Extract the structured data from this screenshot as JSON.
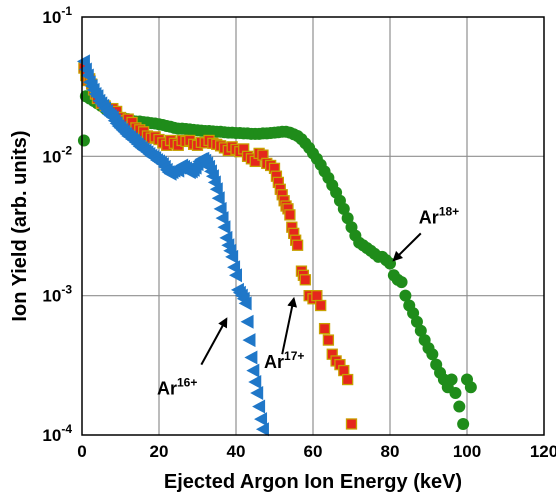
{
  "chart_data": {
    "type": "scatter",
    "xlabel": "Ejected Argon Ion Energy (keV)",
    "ylabel": "Ion Yield (arb. units)",
    "xlim": [
      0,
      120
    ],
    "ylim": [
      0.0001,
      0.1
    ],
    "yscale": "log",
    "grid": true,
    "xticks": [
      "0",
      "20",
      "40",
      "60",
      "80",
      "100",
      "120"
    ],
    "yticks": [
      {
        "base": "10",
        "exp": "-4",
        "value": 0.0001
      },
      {
        "base": "10",
        "exp": "-3",
        "value": 0.001
      },
      {
        "base": "10",
        "exp": "-2",
        "value": 0.01
      },
      {
        "base": "10",
        "exp": "-1",
        "value": 0.1
      }
    ],
    "series": [
      {
        "marker": "triangle-left",
        "color": "#1f77c8",
        "points": [
          [
            0.5,
            0.048
          ],
          [
            1,
            0.042
          ],
          [
            1.5,
            0.038
          ],
          [
            2,
            0.034
          ],
          [
            2.5,
            0.032
          ],
          [
            3,
            0.03
          ],
          [
            3.5,
            0.028
          ],
          [
            4,
            0.027
          ],
          [
            4.5,
            0.025
          ],
          [
            5,
            0.024
          ],
          [
            5.5,
            0.023
          ],
          [
            6,
            0.022
          ],
          [
            6.5,
            0.021
          ],
          [
            7,
            0.02
          ],
          [
            7.5,
            0.0195
          ],
          [
            8,
            0.019
          ],
          [
            8.5,
            0.018
          ],
          [
            9,
            0.0172
          ],
          [
            9.5,
            0.0165
          ],
          [
            10,
            0.016
          ],
          [
            10.5,
            0.0155
          ],
          [
            11,
            0.015
          ],
          [
            11.5,
            0.0145
          ],
          [
            12,
            0.014
          ],
          [
            12.5,
            0.0137
          ],
          [
            13,
            0.0133
          ],
          [
            13.5,
            0.013
          ],
          [
            14,
            0.0126
          ],
          [
            14.5,
            0.0122
          ],
          [
            15,
            0.0118
          ],
          [
            15.5,
            0.0115
          ],
          [
            16,
            0.0112
          ],
          [
            16.5,
            0.011
          ],
          [
            17,
            0.0107
          ],
          [
            17.5,
            0.0104
          ],
          [
            18,
            0.0101
          ],
          [
            18.5,
            0.0099
          ],
          [
            19,
            0.0097
          ],
          [
            19.5,
            0.0094
          ],
          [
            20,
            0.0092
          ],
          [
            20.5,
            0.009
          ],
          [
            21,
            0.0088
          ],
          [
            21.5,
            0.0084
          ],
          [
            22,
            0.008
          ],
          [
            22.5,
            0.0077
          ],
          [
            23,
            0.0075
          ],
          [
            23.5,
            0.0077
          ],
          [
            24,
            0.0079
          ],
          [
            24.5,
            0.0081
          ],
          [
            25,
            0.0079
          ],
          [
            25.5,
            0.0083
          ],
          [
            26,
            0.0086
          ],
          [
            26.5,
            0.0084
          ],
          [
            27,
            0.0082
          ],
          [
            27.5,
            0.0079
          ],
          [
            28,
            0.0077
          ],
          [
            28.5,
            0.0078
          ],
          [
            29,
            0.008
          ],
          [
            29.5,
            0.0083
          ],
          [
            30,
            0.0088
          ],
          [
            30.5,
            0.0092
          ],
          [
            31,
            0.0095
          ],
          [
            31.5,
            0.0096
          ],
          [
            32,
            0.0093
          ],
          [
            32.5,
            0.0089
          ],
          [
            33,
            0.0084
          ],
          [
            33.5,
            0.0078
          ],
          [
            34,
            0.0072
          ],
          [
            34.5,
            0.0065
          ],
          [
            35,
            0.0058
          ],
          [
            35.5,
            0.005
          ],
          [
            36,
            0.0042
          ],
          [
            36.5,
            0.0036
          ],
          [
            37,
            0.0031
          ],
          [
            37.5,
            0.0026
          ],
          [
            38,
            0.0023
          ],
          [
            38.5,
            0.0021
          ],
          [
            39,
            0.0019
          ],
          [
            39.5,
            0.0016
          ],
          [
            40,
            0.0014
          ],
          [
            40.5,
            0.0011
          ],
          [
            41,
            0.00105
          ],
          [
            41.5,
            0.001
          ],
          [
            42,
            0.00095
          ],
          [
            42.5,
            0.00088
          ],
          [
            43,
            0.00065
          ],
          [
            43.5,
            0.00048
          ],
          [
            44,
            0.00036
          ],
          [
            44.5,
            0.00029
          ],
          [
            45,
            0.00024
          ],
          [
            45.5,
            0.0002
          ],
          [
            46,
            0.00016
          ],
          [
            46.5,
            0.00013
          ],
          [
            47,
            0.00011
          ]
        ]
      },
      {
        "marker": "square",
        "color": "#e5261c",
        "edgecolor": "#c8a000",
        "points": [
          [
            0.5,
            0.043
          ],
          [
            1,
            0.038
          ],
          [
            1.5,
            0.035
          ],
          [
            2,
            0.036
          ],
          [
            2.5,
            0.033
          ],
          [
            3,
            0.03
          ],
          [
            3.5,
            0.028
          ],
          [
            4,
            0.026
          ],
          [
            5,
            0.024
          ],
          [
            6,
            0.023
          ],
          [
            7,
            0.022
          ],
          [
            8,
            0.022
          ],
          [
            9,
            0.021
          ],
          [
            10,
            0.019
          ],
          [
            11,
            0.018
          ],
          [
            12,
            0.0185
          ],
          [
            13,
            0.0175
          ],
          [
            14,
            0.016
          ],
          [
            15,
            0.0155
          ],
          [
            16,
            0.015
          ],
          [
            17,
            0.014
          ],
          [
            18,
            0.0135
          ],
          [
            19,
            0.0138
          ],
          [
            20,
            0.0132
          ],
          [
            21,
            0.0125
          ],
          [
            22,
            0.012
          ],
          [
            23,
            0.013
          ],
          [
            24,
            0.0124
          ],
          [
            25,
            0.012
          ],
          [
            26,
            0.013
          ],
          [
            27,
            0.0128
          ],
          [
            28,
            0.013
          ],
          [
            29,
            0.0122
          ],
          [
            30,
            0.012
          ],
          [
            31,
            0.0126
          ],
          [
            32,
            0.0125
          ],
          [
            33,
            0.013
          ],
          [
            34,
            0.0124
          ],
          [
            35,
            0.0122
          ],
          [
            36,
            0.0119
          ],
          [
            37,
            0.0115
          ],
          [
            38,
            0.011
          ],
          [
            39,
            0.0117
          ],
          [
            40,
            0.0112
          ],
          [
            41,
            0.0108
          ],
          [
            42,
            0.0113
          ],
          [
            43,
            0.01
          ],
          [
            44,
            0.0096
          ],
          [
            45,
            0.0092
          ],
          [
            46,
            0.0105
          ],
          [
            47,
            0.0102
          ],
          [
            48,
            0.0089
          ],
          [
            49,
            0.0086
          ],
          [
            50,
            0.0082
          ],
          [
            50.5,
            0.0072
          ],
          [
            51,
            0.0065
          ],
          [
            51.5,
            0.0058
          ],
          [
            52,
            0.0053
          ],
          [
            52.5,
            0.0048
          ],
          [
            53,
            0.0044
          ],
          [
            53.5,
            0.0042
          ],
          [
            54,
            0.0038
          ],
          [
            54.5,
            0.0031
          ],
          [
            55,
            0.0028
          ],
          [
            55.5,
            0.0025
          ],
          [
            56,
            0.0023
          ],
          [
            57,
            0.0015
          ],
          [
            57.5,
            0.0014
          ],
          [
            58,
            0.0013
          ],
          [
            59,
            0.001
          ],
          [
            60,
            0.00095
          ],
          [
            61,
            0.001
          ],
          [
            62,
            0.00085
          ],
          [
            63,
            0.00058
          ],
          [
            64,
            0.00048
          ],
          [
            65,
            0.00038
          ],
          [
            66,
            0.00034
          ],
          [
            67,
            0.00032
          ],
          [
            68,
            0.00029
          ],
          [
            69,
            0.00025
          ],
          [
            70,
            0.00012
          ]
        ]
      },
      {
        "marker": "circle",
        "color": "#1f8c1a",
        "points": [
          [
            0.5,
            0.013
          ],
          [
            1,
            0.027
          ],
          [
            2,
            0.026
          ],
          [
            3,
            0.025
          ],
          [
            4,
            0.024
          ],
          [
            5,
            0.023
          ],
          [
            6,
            0.022
          ],
          [
            7,
            0.021
          ],
          [
            8,
            0.02
          ],
          [
            9,
            0.0195
          ],
          [
            10,
            0.019
          ],
          [
            11,
            0.0187
          ],
          [
            12,
            0.0185
          ],
          [
            13,
            0.018
          ],
          [
            14,
            0.0178
          ],
          [
            15,
            0.0178
          ],
          [
            16,
            0.0176
          ],
          [
            17,
            0.0175
          ],
          [
            18,
            0.0173
          ],
          [
            19,
            0.0172
          ],
          [
            20,
            0.017
          ],
          [
            21,
            0.0168
          ],
          [
            22,
            0.0165
          ],
          [
            23,
            0.0163
          ],
          [
            24,
            0.016
          ],
          [
            25,
            0.0158
          ],
          [
            26,
            0.0158
          ],
          [
            27,
            0.0157
          ],
          [
            28,
            0.0156
          ],
          [
            29,
            0.0155
          ],
          [
            30,
            0.0154
          ],
          [
            31,
            0.0153
          ],
          [
            32,
            0.0152
          ],
          [
            33,
            0.0152
          ],
          [
            34,
            0.0151
          ],
          [
            35,
            0.015
          ],
          [
            36,
            0.015
          ],
          [
            37,
            0.0149
          ],
          [
            38,
            0.0148
          ],
          [
            39,
            0.0148
          ],
          [
            40,
            0.0147
          ],
          [
            41,
            0.0147
          ],
          [
            42,
            0.0146
          ],
          [
            43,
            0.0146
          ],
          [
            44,
            0.0145
          ],
          [
            45,
            0.0145
          ],
          [
            46,
            0.0145
          ],
          [
            47,
            0.0146
          ],
          [
            48,
            0.0146
          ],
          [
            49,
            0.0147
          ],
          [
            50,
            0.0148
          ],
          [
            51,
            0.0149
          ],
          [
            52,
            0.015
          ],
          [
            53,
            0.015
          ],
          [
            54,
            0.0148
          ],
          [
            55,
            0.0144
          ],
          [
            56,
            0.014
          ],
          [
            57,
            0.0133
          ],
          [
            58,
            0.0124
          ],
          [
            59,
            0.0115
          ],
          [
            60,
            0.0105
          ],
          [
            61,
            0.0096
          ],
          [
            62,
            0.0087
          ],
          [
            63,
            0.0078
          ],
          [
            64,
            0.007
          ],
          [
            65,
            0.0062
          ],
          [
            66,
            0.0055
          ],
          [
            67,
            0.0048
          ],
          [
            68,
            0.0042
          ],
          [
            69,
            0.0036
          ],
          [
            70,
            0.0031
          ],
          [
            71,
            0.0027
          ],
          [
            72,
            0.0024
          ],
          [
            73,
            0.0023
          ],
          [
            74,
            0.0022
          ],
          [
            75,
            0.0021
          ],
          [
            76,
            0.002
          ],
          [
            77,
            0.0019
          ],
          [
            78,
            0.0019
          ],
          [
            79,
            0.0018
          ],
          [
            80,
            0.0017
          ],
          [
            81,
            0.0014
          ],
          [
            82,
            0.0013
          ],
          [
            83,
            0.00125
          ],
          [
            84,
            0.001
          ],
          [
            85,
            0.00085
          ],
          [
            86,
            0.00075
          ],
          [
            87,
            0.00065
          ],
          [
            88,
            0.00056
          ],
          [
            89,
            0.00048
          ],
          [
            90,
            0.00042
          ],
          [
            91,
            0.00038
          ],
          [
            92,
            0.00032
          ],
          [
            93,
            0.00028
          ],
          [
            94,
            0.00025
          ],
          [
            95,
            0.00022
          ],
          [
            96,
            0.00025
          ],
          [
            97,
            0.0002
          ],
          [
            98,
            0.00016
          ],
          [
            99,
            0.00012
          ],
          [
            100,
            0.00025
          ],
          [
            101,
            0.00022
          ]
        ]
      }
    ],
    "annotations": [
      {
        "label": "Ar",
        "sup": "16+",
        "from": [
          31,
          0.00032
        ],
        "to": [
          37.5,
          0.00068
        ]
      },
      {
        "label": "Ar",
        "sup": "17+",
        "from": [
          52,
          0.00038
        ],
        "to": [
          55,
          0.00095
        ]
      },
      {
        "label": "Ar",
        "sup": "18+",
        "from": [
          88,
          0.0028
        ],
        "to": [
          81,
          0.0018
        ]
      }
    ]
  }
}
